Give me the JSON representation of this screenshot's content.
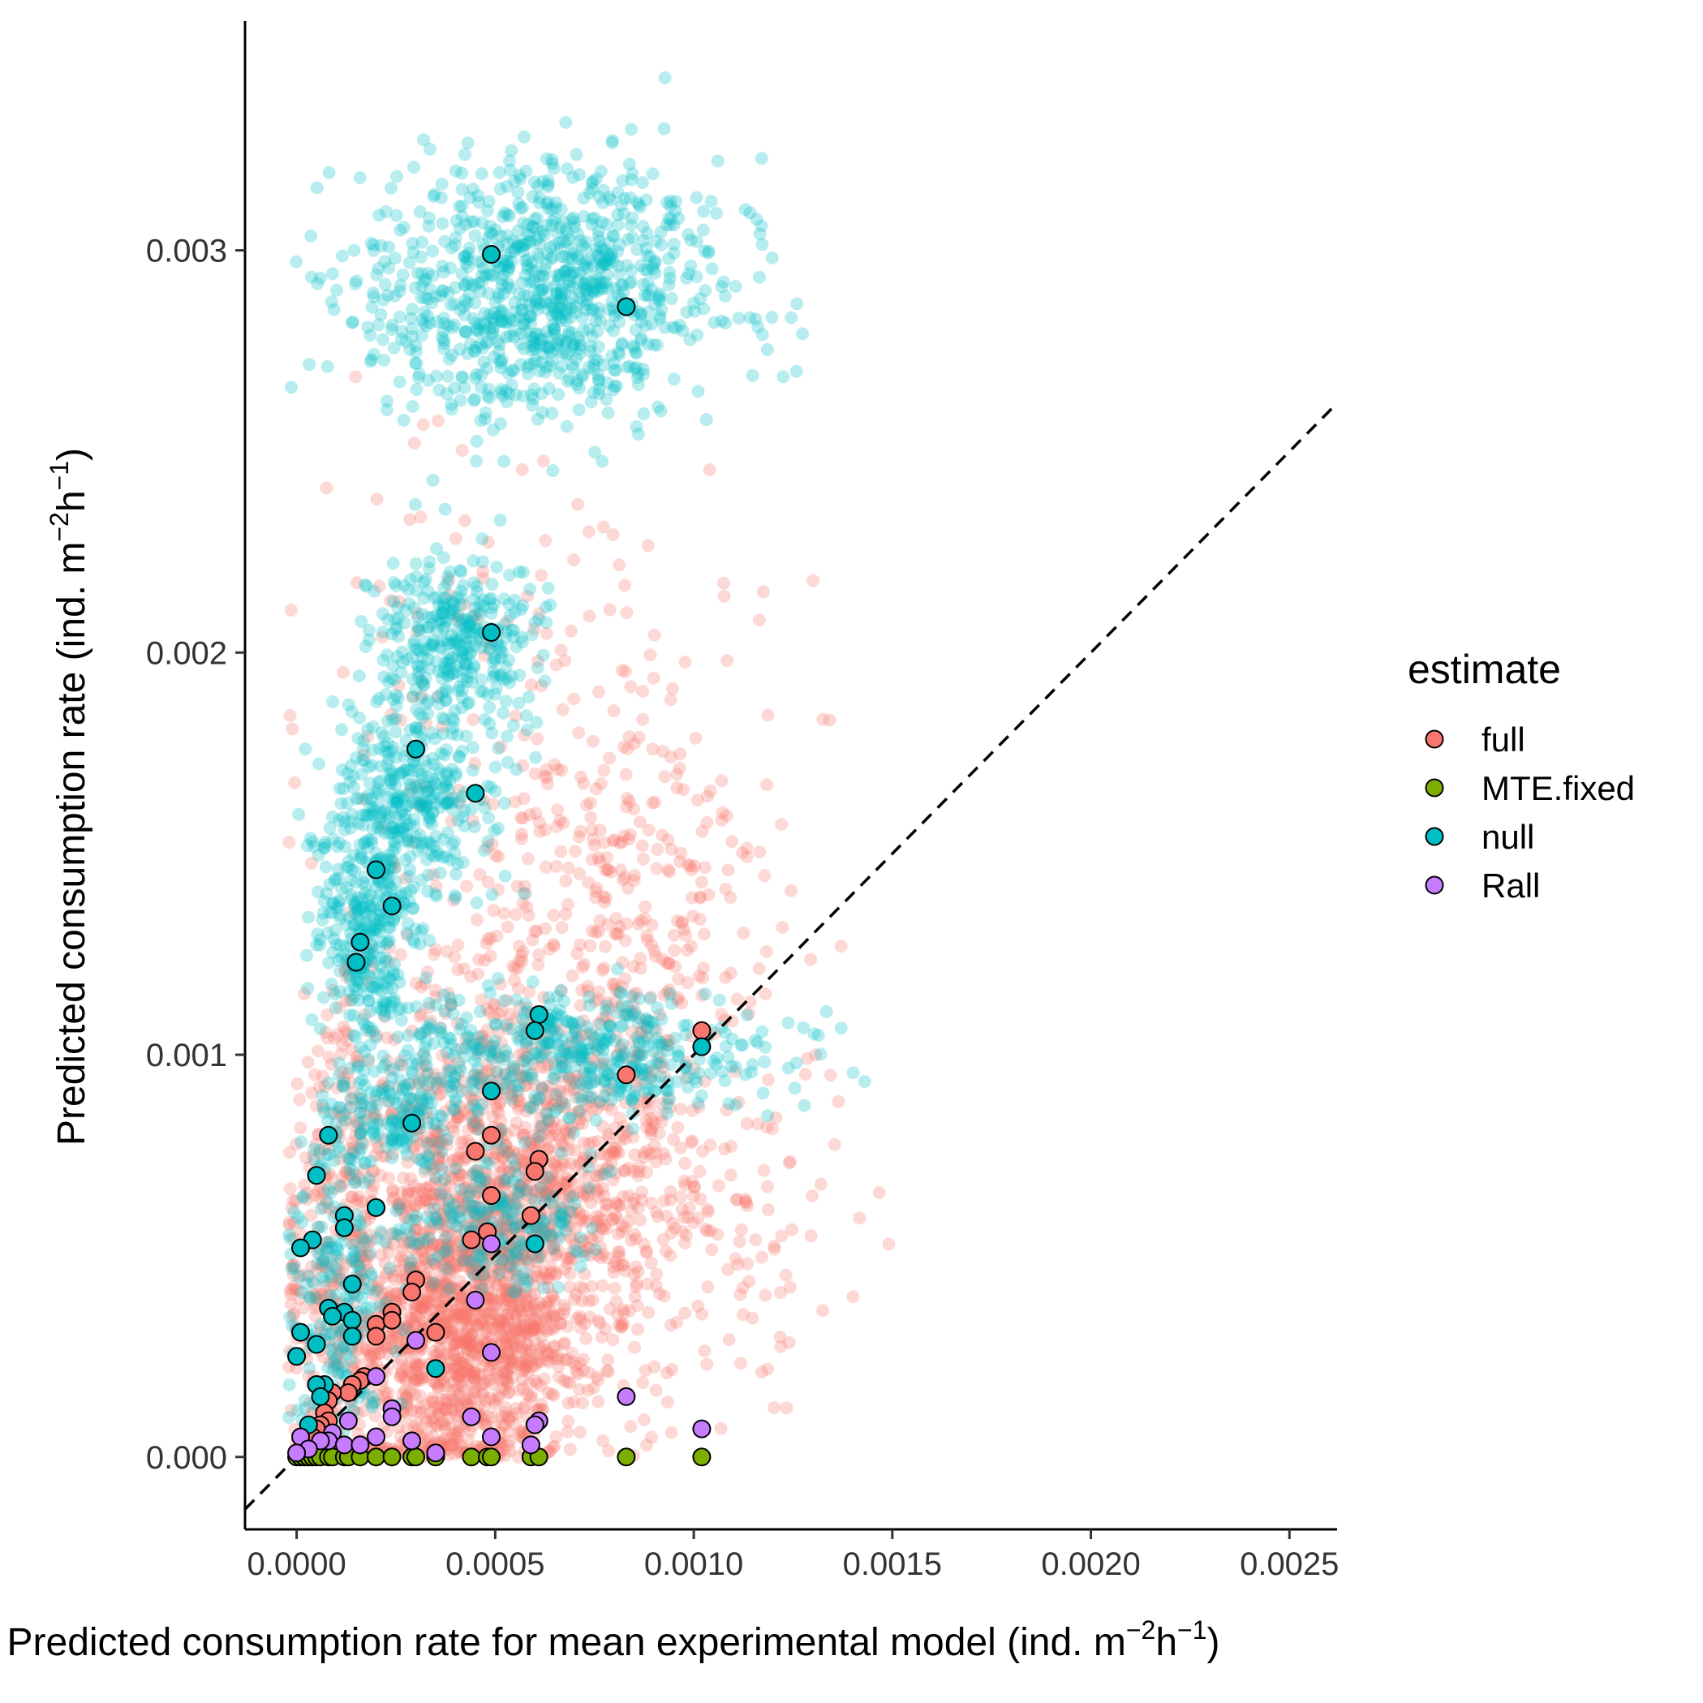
{
  "chart_data": {
    "type": "scatter",
    "title": "",
    "xlabel_parts": [
      "Predicted consumption rate for mean experimental model (ind. m",
      "−2",
      "h",
      "−1",
      ")"
    ],
    "ylabel_parts": [
      "Predicted consumption rate (ind. m",
      "−2",
      "h",
      "−1",
      ")"
    ],
    "xlim": [
      -0.00013,
      0.00262
    ],
    "ylim": [
      -0.00018,
      0.00357
    ],
    "x_ticks": [
      0.0,
      0.0005,
      0.001,
      0.0015,
      0.002,
      0.0025
    ],
    "x_tick_labels": [
      "0.0000",
      "0.0005",
      "0.0010",
      "0.0015",
      "0.0020",
      "0.0025"
    ],
    "y_ticks": [
      0.0,
      0.001,
      0.002,
      0.003
    ],
    "y_tick_labels": [
      "0.000",
      "0.001",
      "0.002",
      "0.003"
    ],
    "grid": false,
    "reference_line": {
      "type": "identity",
      "style": "dashed",
      "color": "#000000"
    },
    "legend": {
      "title": "estimate",
      "position": "right",
      "entries": [
        {
          "label": "full",
          "color": "#F8766D"
        },
        {
          "label": "MTE.fixed",
          "color": "#7CAE00"
        },
        {
          "label": "null",
          "color": "#00BFC4"
        },
        {
          "label": "Rall",
          "color": "#C77CFF"
        }
      ]
    },
    "background_clouds": [
      {
        "series": "full",
        "color": "#F8766D",
        "opacity": 0.28,
        "clusters": [
          {
            "cx": 0.0004,
            "cy": 0.0003,
            "sx": 0.00017,
            "sy": 0.0002,
            "n": 1400
          },
          {
            "cx": 0.00055,
            "cy": 0.00072,
            "sx": 0.0002,
            "sy": 0.00022,
            "n": 900
          },
          {
            "cx": 0.00075,
            "cy": 0.0013,
            "sx": 0.00022,
            "sy": 0.00035,
            "n": 420
          },
          {
            "cx": 0.0005,
            "cy": 0.002,
            "sx": 0.0003,
            "sy": 0.0003,
            "n": 110
          },
          {
            "cx": 0.0009,
            "cy": 0.0006,
            "sx": 0.00025,
            "sy": 0.00025,
            "n": 220
          },
          {
            "cx": 0.0001,
            "cy": 0.0006,
            "sx": 6e-05,
            "sy": 0.0003,
            "n": 200
          }
        ]
      },
      {
        "series": "null",
        "color": "#00BFC4",
        "opacity": 0.28,
        "clusters": [
          {
            "cx": 0.00062,
            "cy": 0.0029,
            "sx": 0.00022,
            "sy": 0.00016,
            "n": 950
          },
          {
            "cx": 0.0004,
            "cy": 0.00205,
            "sx": 0.0001,
            "sy": 0.0001,
            "n": 320
          },
          {
            "cx": 0.0003,
            "cy": 0.00165,
            "sx": 0.0001,
            "sy": 0.00012,
            "n": 330
          },
          {
            "cx": 0.00018,
            "cy": 0.0013,
            "sx": 6e-05,
            "sy": 0.00015,
            "n": 330
          },
          {
            "cx": 0.0007,
            "cy": 0.001,
            "sx": 0.00025,
            "sy": 8e-05,
            "n": 480
          },
          {
            "cx": 0.0005,
            "cy": 0.00058,
            "sx": 0.00012,
            "sy": 8e-05,
            "n": 220
          },
          {
            "cx": 0.0001,
            "cy": 0.0004,
            "sx": 6e-05,
            "sy": 0.0002,
            "n": 220
          },
          {
            "cx": 0.00025,
            "cy": 0.00085,
            "sx": 0.0001,
            "sy": 7e-05,
            "n": 150
          }
        ]
      }
    ],
    "series": [
      {
        "name": "full",
        "color": "#F8766D",
        "points": [
          [
            0.00102,
            0.00106
          ],
          [
            0.00083,
            0.00095
          ],
          [
            0.00049,
            0.0008
          ],
          [
            0.00045,
            0.00076
          ],
          [
            0.00061,
            0.00074
          ],
          [
            0.0006,
            0.00071
          ],
          [
            0.00049,
            0.00065
          ],
          [
            0.00059,
            0.0006
          ],
          [
            0.00048,
            0.00056
          ],
          [
            0.00044,
            0.00054
          ],
          [
            0.0003,
            0.00044
          ],
          [
            0.00029,
            0.00041
          ],
          [
            0.00024,
            0.00036
          ],
          [
            0.0002,
            0.00033
          ],
          [
            0.00024,
            0.00034
          ],
          [
            0.00035,
            0.00031
          ],
          [
            0.0002,
            0.0003
          ],
          [
            0.00017,
            0.0002
          ],
          [
            0.00016,
            0.00019
          ],
          [
            0.00014,
            0.00018
          ],
          [
            0.00013,
            0.00016
          ],
          [
            9e-05,
            0.00016
          ],
          [
            8e-05,
            0.00014
          ],
          [
            7e-05,
            0.00011
          ],
          [
            8e-05,
            9e-05
          ],
          [
            6e-05,
            8e-05
          ],
          [
            5e-05,
            7e-05
          ],
          [
            4e-05,
            5e-05
          ]
        ]
      },
      {
        "name": "MTE.fixed",
        "color": "#7CAE00",
        "points": [
          [
            0.0,
            0.0
          ],
          [
            1e-05,
            0.0
          ],
          [
            2e-05,
            0.0
          ],
          [
            3e-05,
            0.0
          ],
          [
            4e-05,
            0.0
          ],
          [
            5e-05,
            0.0
          ],
          [
            6e-05,
            0.0
          ],
          [
            8e-05,
            0.0
          ],
          [
            9e-05,
            0.0
          ],
          [
            0.00012,
            0.0
          ],
          [
            0.00013,
            0.0
          ],
          [
            0.00016,
            0.0
          ],
          [
            0.0002,
            0.0
          ],
          [
            0.00024,
            0.0
          ],
          [
            0.00029,
            0.0
          ],
          [
            0.0003,
            0.0
          ],
          [
            0.00035,
            0.0
          ],
          [
            0.00044,
            0.0
          ],
          [
            0.00048,
            0.0
          ],
          [
            0.00049,
            0.0
          ],
          [
            0.00059,
            0.0
          ],
          [
            0.00061,
            0.0
          ],
          [
            0.00083,
            0.0
          ],
          [
            0.00102,
            0.0
          ]
        ]
      },
      {
        "name": "null",
        "color": "#00BFC4",
        "points": [
          [
            0.00049,
            0.00299
          ],
          [
            0.00083,
            0.00286
          ],
          [
            0.00049,
            0.00205
          ],
          [
            0.0003,
            0.00176
          ],
          [
            0.00045,
            0.00165
          ],
          [
            0.0002,
            0.00146
          ],
          [
            0.00024,
            0.00137
          ],
          [
            0.00016,
            0.00128
          ],
          [
            0.00015,
            0.00123
          ],
          [
            0.00061,
            0.0011
          ],
          [
            0.0006,
            0.00106
          ],
          [
            0.00102,
            0.00102
          ],
          [
            0.00049,
            0.00091
          ],
          [
            0.00029,
            0.00083
          ],
          [
            8e-05,
            0.0008
          ],
          [
            5e-05,
            0.0007
          ],
          [
            0.00012,
            0.0006
          ],
          [
            0.0002,
            0.00062
          ],
          [
            0.00012,
            0.00057
          ],
          [
            4e-05,
            0.00054
          ],
          [
            1e-05,
            0.00052
          ],
          [
            0.0006,
            0.00053
          ],
          [
            0.00014,
            0.00043
          ],
          [
            8e-05,
            0.00037
          ],
          [
            0.00012,
            0.00036
          ],
          [
            9e-05,
            0.00035
          ],
          [
            0.00014,
            0.00034
          ],
          [
            1e-05,
            0.00031
          ],
          [
            0.00014,
            0.0003
          ],
          [
            5e-05,
            0.00028
          ],
          [
            0.0,
            0.00025
          ],
          [
            0.00035,
            0.00022
          ],
          [
            7e-05,
            0.00018
          ],
          [
            5e-05,
            0.00018
          ],
          [
            6e-05,
            0.00015
          ],
          [
            3e-05,
            8e-05
          ]
        ]
      },
      {
        "name": "Rall",
        "color": "#C77CFF",
        "points": [
          [
            0.00049,
            0.00053
          ],
          [
            0.00045,
            0.00039
          ],
          [
            0.0003,
            0.00029
          ],
          [
            0.00049,
            0.00026
          ],
          [
            0.0002,
            0.0002
          ],
          [
            0.00083,
            0.00015
          ],
          [
            0.00024,
            0.00012
          ],
          [
            0.00013,
            9e-05
          ],
          [
            0.00024,
            0.0001
          ],
          [
            0.00044,
            0.0001
          ],
          [
            0.00061,
            9e-05
          ],
          [
            0.0006,
            8e-05
          ],
          [
            0.00102,
            7e-05
          ],
          [
            0.0002,
            5e-05
          ],
          [
            0.00029,
            4e-05
          ],
          [
            0.00049,
            5e-05
          ],
          [
            0.00059,
            3e-05
          ],
          [
            9e-05,
            6e-05
          ],
          [
            8e-05,
            4e-05
          ],
          [
            6e-05,
            4e-05
          ],
          [
            0.00012,
            3e-05
          ],
          [
            0.00016,
            3e-05
          ],
          [
            1e-05,
            5e-05
          ],
          [
            3e-05,
            2e-05
          ],
          [
            0.00035,
            1e-05
          ],
          [
            0.0,
            1e-05
          ]
        ]
      }
    ]
  }
}
